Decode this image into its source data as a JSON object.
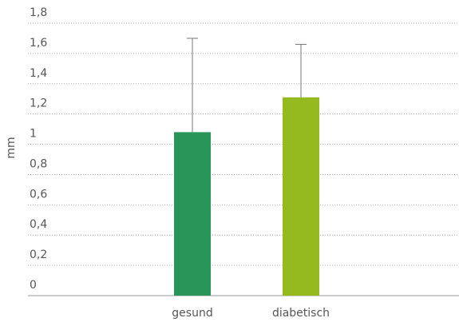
{
  "chart_data": {
    "type": "bar",
    "y_label": "mm",
    "categories": [
      "gesund",
      "diabetisch"
    ],
    "values": [
      1.08,
      1.31
    ],
    "errors": [
      0.62,
      0.35
    ],
    "colors": [
      "#2a9559",
      "#95ba1f"
    ],
    "error_color": "#777777",
    "ylim": [
      0,
      1.8
    ],
    "yticks": [
      0,
      {
        "value": 0.2,
        "label": "0,2"
      },
      {
        "value": 0.4,
        "label": "0,4"
      },
      {
        "value": 0.6,
        "label": "0,6"
      },
      {
        "value": 0.8,
        "label": "0,8"
      },
      1,
      {
        "value": 1.2,
        "label": "1,2"
      },
      {
        "value": 1.4,
        "label": "1,4"
      },
      {
        "value": 1.6,
        "label": "1,6"
      },
      {
        "value": 1.8,
        "label": "1,8"
      }
    ],
    "grid": true
  }
}
